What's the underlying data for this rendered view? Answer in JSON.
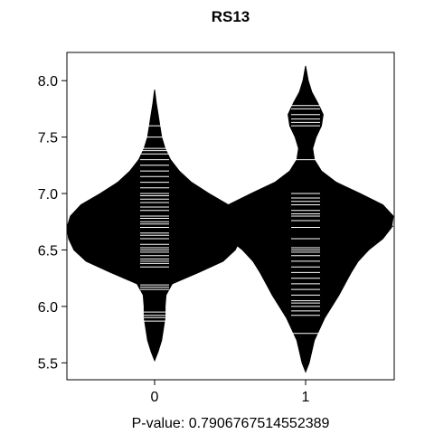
{
  "chart_data": {
    "type": "beanplot",
    "title": "RS13",
    "xlabel": "P-value: 0.7906767514552389",
    "ylabel": "",
    "categories": [
      "0",
      "1"
    ],
    "ylim": [
      5.35,
      8.25
    ],
    "yticks": [
      5.5,
      6.0,
      6.5,
      7.0,
      7.5,
      8.0
    ],
    "ytick_labels": [
      "5.5",
      "6.0",
      "6.5",
      "7.0",
      "7.5",
      "8.0"
    ],
    "overall_line": 6.71,
    "grid": false,
    "legend": "none",
    "colors": {
      "bean_fill": "#000000",
      "bean_lines": "#ffffff",
      "axis": "#000000"
    },
    "series": [
      {
        "category": "0",
        "mean": 6.71,
        "density": [
          [
            5.52,
            0.0
          ],
          [
            5.6,
            0.04
          ],
          [
            5.7,
            0.08
          ],
          [
            5.8,
            0.1
          ],
          [
            5.9,
            0.12
          ],
          [
            6.0,
            0.12
          ],
          [
            6.1,
            0.13
          ],
          [
            6.2,
            0.2
          ],
          [
            6.3,
            0.5
          ],
          [
            6.4,
            0.78
          ],
          [
            6.5,
            0.92
          ],
          [
            6.6,
            0.98
          ],
          [
            6.7,
            1.0
          ],
          [
            6.8,
            0.96
          ],
          [
            6.9,
            0.84
          ],
          [
            7.0,
            0.62
          ],
          [
            7.1,
            0.42
          ],
          [
            7.2,
            0.28
          ],
          [
            7.3,
            0.18
          ],
          [
            7.4,
            0.12
          ],
          [
            7.5,
            0.08
          ],
          [
            7.6,
            0.06
          ],
          [
            7.7,
            0.04
          ],
          [
            7.8,
            0.02
          ],
          [
            7.92,
            0.0
          ]
        ],
        "observations": [
          5.87,
          5.9,
          5.92,
          5.95,
          6.15,
          6.17,
          6.19,
          6.35,
          6.38,
          6.4,
          6.42,
          6.45,
          6.48,
          6.5,
          6.52,
          6.55,
          6.6,
          6.63,
          6.65,
          6.7,
          6.73,
          6.75,
          6.78,
          6.8,
          6.85,
          6.88,
          6.92,
          6.95,
          6.98,
          7.0,
          7.05,
          7.1,
          7.15,
          7.2,
          7.25,
          7.3,
          7.35,
          7.38,
          7.4,
          7.5,
          7.6
        ]
      },
      {
        "category": "1",
        "mean": 6.73,
        "density": [
          [
            5.42,
            0.0
          ],
          [
            5.5,
            0.04
          ],
          [
            5.6,
            0.07
          ],
          [
            5.7,
            0.1
          ],
          [
            5.8,
            0.16
          ],
          [
            5.9,
            0.22
          ],
          [
            6.0,
            0.3
          ],
          [
            6.1,
            0.38
          ],
          [
            6.2,
            0.45
          ],
          [
            6.3,
            0.52
          ],
          [
            6.4,
            0.6
          ],
          [
            6.5,
            0.72
          ],
          [
            6.6,
            0.88
          ],
          [
            6.7,
            0.98
          ],
          [
            6.8,
            1.0
          ],
          [
            6.9,
            0.88
          ],
          [
            7.0,
            0.62
          ],
          [
            7.1,
            0.35
          ],
          [
            7.2,
            0.18
          ],
          [
            7.3,
            0.1
          ],
          [
            7.4,
            0.08
          ],
          [
            7.5,
            0.12
          ],
          [
            7.6,
            0.18
          ],
          [
            7.7,
            0.2
          ],
          [
            7.8,
            0.14
          ],
          [
            7.9,
            0.07
          ],
          [
            8.0,
            0.03
          ],
          [
            8.13,
            0.0
          ]
        ],
        "observations": [
          5.76,
          5.92,
          5.96,
          6.0,
          6.03,
          6.05,
          6.1,
          6.15,
          6.2,
          6.25,
          6.3,
          6.35,
          6.4,
          6.45,
          6.48,
          6.5,
          6.52,
          6.6,
          6.7,
          6.73,
          6.76,
          6.8,
          6.82,
          6.85,
          6.9,
          6.93,
          6.96,
          7.0,
          7.3,
          7.6,
          7.63,
          7.66,
          7.7,
          7.75,
          7.78
        ]
      }
    ]
  }
}
